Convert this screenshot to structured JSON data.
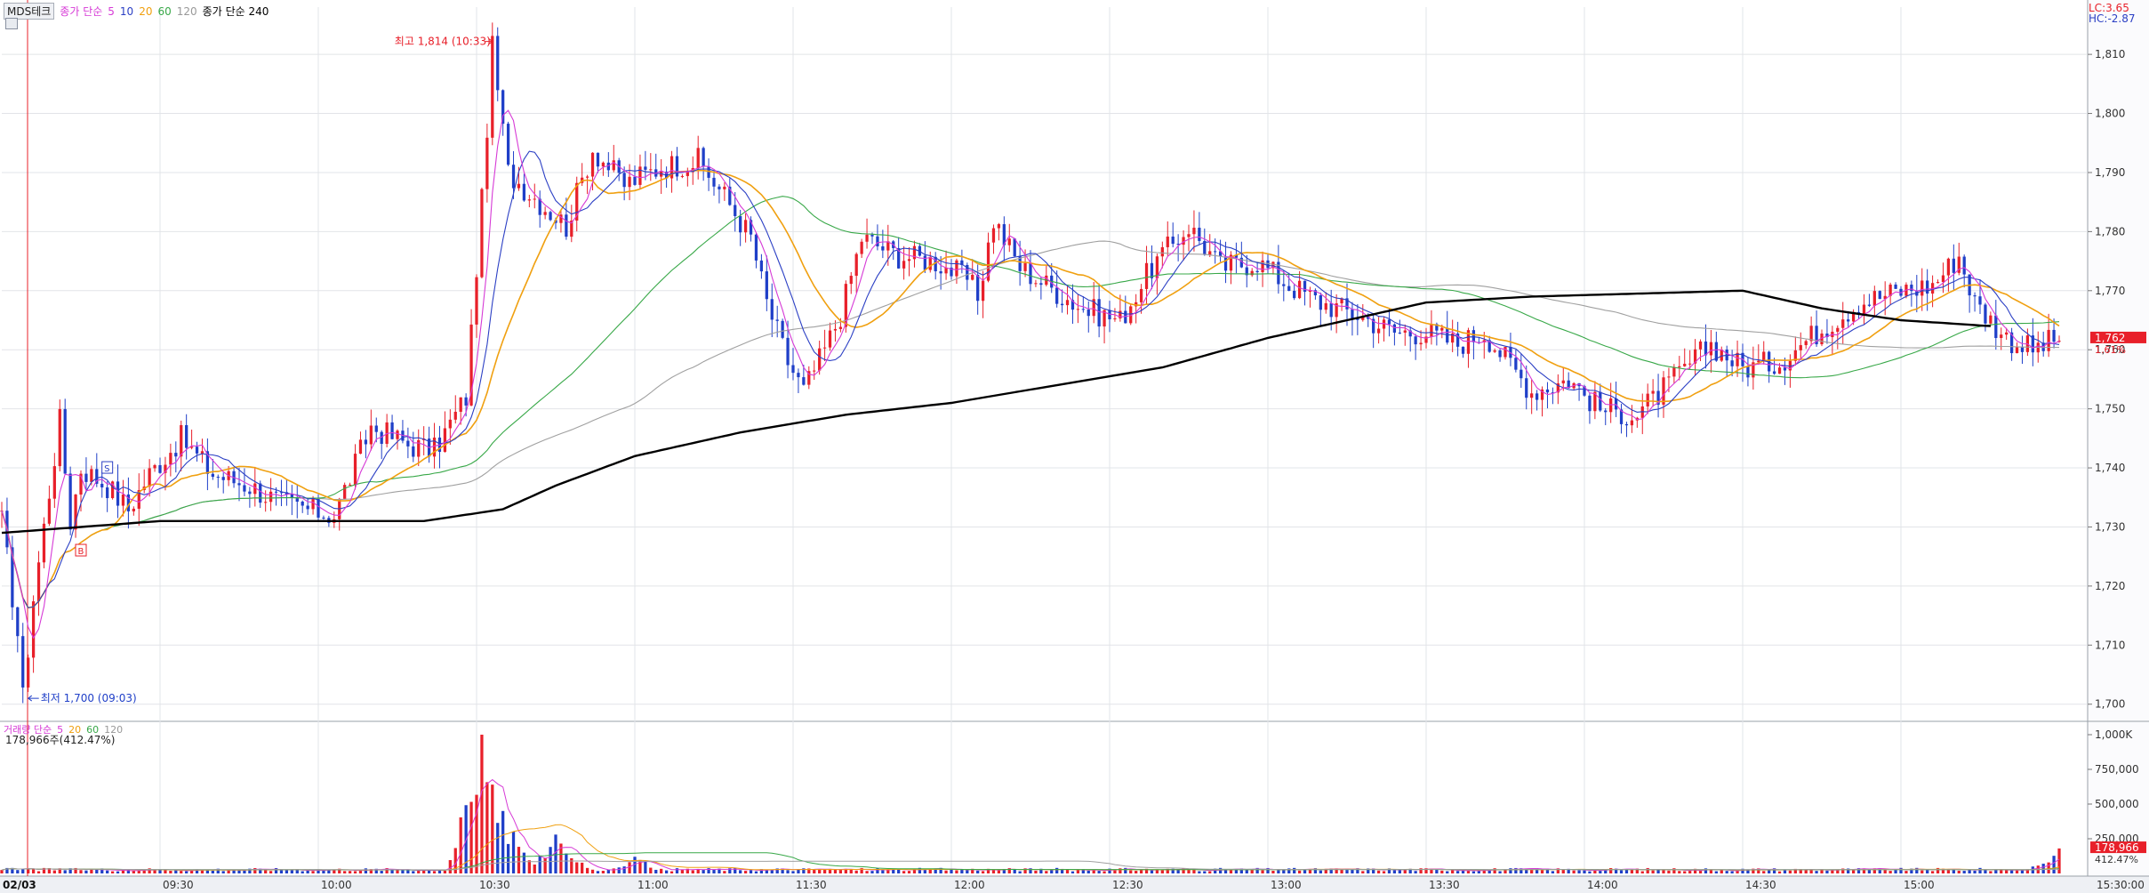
{
  "stock": {
    "name": "MDS테크"
  },
  "price_legend": {
    "label": "종가 단순",
    "periods": [
      "5",
      "10",
      "20",
      "60",
      "120"
    ],
    "long_label": "종가 단순 240"
  },
  "volume_legend": {
    "label": "거래량 단순",
    "periods": [
      "5",
      "20",
      "60",
      "120"
    ],
    "current": "178,966주(412.47%)"
  },
  "indicators": {
    "lc": "LC:3.65",
    "hc": "HC:-2.87"
  },
  "annotations": {
    "high": "최고 1,814 (10:33)",
    "low": "최저 1,700 (09:03)"
  },
  "markers": {
    "s": "S",
    "b": "B"
  },
  "current_tag": {
    "price": "1,762",
    "change": "1.61%"
  },
  "volume_tag": {
    "volume": "178,966",
    "ratio": "412.47%"
  },
  "colors": {
    "up": "#e8202a",
    "down": "#1f3fc8",
    "ma5": "#d63ad6",
    "ma10": "#2b3fc4",
    "ma20": "#f0a010",
    "ma60": "#38a848",
    "ma120": "#a0a0a0",
    "ma240": "#000000"
  },
  "chart_data": {
    "type": "candlestick",
    "date": "02/03",
    "price_axis": {
      "ticks": [
        1700,
        1710,
        1720,
        1730,
        1740,
        1750,
        1760,
        1770,
        1780,
        1790,
        1800,
        1810
      ],
      "labels": [
        "1,700",
        "1,710",
        "1,720",
        "1,730",
        "1,740",
        "1,750",
        "1,760",
        "1,770",
        "1,780",
        "1,790",
        "1,800",
        "1,810"
      ],
      "ylim": [
        1698,
        1818
      ]
    },
    "volume_axis": {
      "ticks": [
        250000,
        500000,
        750000,
        1000000
      ],
      "labels": [
        "250,000",
        "500,000",
        "750,000",
        "1,000K"
      ],
      "ylim": [
        0,
        1000000
      ]
    },
    "time_axis": {
      "labels": [
        "02/03",
        "09:30",
        "10:00",
        "10:30",
        "11:00",
        "11:30",
        "12:00",
        "12:30",
        "13:00",
        "13:30",
        "14:00",
        "14:30",
        "15:00",
        "15:30:00"
      ],
      "minutes": [
        0,
        30,
        60,
        90,
        120,
        150,
        180,
        210,
        240,
        270,
        300,
        330,
        360,
        390
      ]
    },
    "ohlc_keypoints": [
      [
        0,
        1731
      ],
      [
        3,
        1712
      ],
      [
        4,
        1701
      ],
      [
        6,
        1718
      ],
      [
        11,
        1748
      ],
      [
        13,
        1731
      ],
      [
        15,
        1740
      ],
      [
        20,
        1737
      ],
      [
        24,
        1733
      ],
      [
        28,
        1739
      ],
      [
        34,
        1745
      ],
      [
        40,
        1739
      ],
      [
        47,
        1737
      ],
      [
        53,
        1734
      ],
      [
        58,
        1733
      ],
      [
        63,
        1732
      ],
      [
        70,
        1747
      ],
      [
        77,
        1744
      ],
      [
        82,
        1743
      ],
      [
        88,
        1752
      ],
      [
        91,
        1785
      ],
      [
        93,
        1811
      ],
      [
        96,
        1790
      ],
      [
        102,
        1785
      ],
      [
        107,
        1781
      ],
      [
        112,
        1794
      ],
      [
        118,
        1788
      ],
      [
        125,
        1791
      ],
      [
        132,
        1792
      ],
      [
        137,
        1786
      ],
      [
        142,
        1779
      ],
      [
        145,
        1768
      ],
      [
        149,
        1758
      ],
      [
        152,
        1753
      ],
      [
        156,
        1760
      ],
      [
        159,
        1766
      ],
      [
        163,
        1779
      ],
      [
        170,
        1776
      ],
      [
        177,
        1775
      ],
      [
        183,
        1772
      ],
      [
        185,
        1769
      ],
      [
        188,
        1782
      ],
      [
        193,
        1774
      ],
      [
        198,
        1771
      ],
      [
        205,
        1767
      ],
      [
        212,
        1765
      ],
      [
        218,
        1774
      ],
      [
        225,
        1781
      ],
      [
        231,
        1774
      ],
      [
        238,
        1775
      ],
      [
        244,
        1771
      ],
      [
        250,
        1768
      ],
      [
        257,
        1766
      ],
      [
        264,
        1763
      ],
      [
        270,
        1763
      ],
      [
        276,
        1761
      ],
      [
        281,
        1763
      ],
      [
        290,
        1753
      ],
      [
        297,
        1755
      ],
      [
        303,
        1750
      ],
      [
        310,
        1749
      ],
      [
        317,
        1755
      ],
      [
        324,
        1761
      ],
      [
        330,
        1757
      ],
      [
        337,
        1758
      ],
      [
        344,
        1763
      ],
      [
        352,
        1768
      ],
      [
        360,
        1770
      ],
      [
        366,
        1771
      ],
      [
        371,
        1776
      ],
      [
        374,
        1768
      ],
      [
        380,
        1762
      ],
      [
        385,
        1760
      ],
      [
        390,
        1762
      ]
    ],
    "ma240_keypoints": [
      [
        0,
        1729
      ],
      [
        30,
        1731
      ],
      [
        60,
        1731
      ],
      [
        80,
        1731
      ],
      [
        95,
        1733
      ],
      [
        105,
        1737
      ],
      [
        120,
        1742
      ],
      [
        140,
        1746
      ],
      [
        160,
        1749
      ],
      [
        180,
        1751
      ],
      [
        200,
        1754
      ],
      [
        220,
        1757
      ],
      [
        240,
        1762
      ],
      [
        255,
        1765
      ],
      [
        270,
        1768
      ],
      [
        290,
        1769
      ],
      [
        310,
        1769.5
      ],
      [
        330,
        1770
      ],
      [
        345,
        1767
      ],
      [
        360,
        1765
      ],
      [
        377,
        1764
      ]
    ],
    "volume_spikes": [
      [
        91,
        1000000
      ],
      [
        93,
        640000
      ],
      [
        95,
        450000
      ],
      [
        105,
        280000
      ],
      [
        120,
        120000
      ],
      [
        390,
        180000
      ]
    ]
  }
}
